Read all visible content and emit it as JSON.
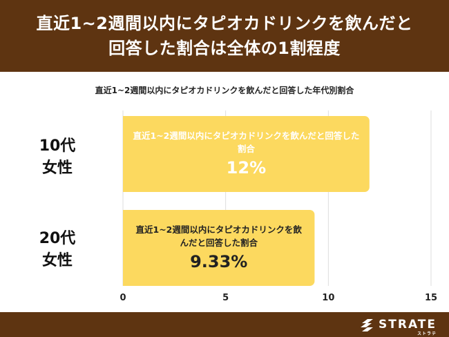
{
  "header": {
    "title_line1": "直近1~2週間以内にタピオカドリンクを飲んだと",
    "title_line2": "回答した割合は全体の1割程度"
  },
  "chart_data": {
    "type": "bar",
    "orientation": "horizontal",
    "title": "直近1~2週間以内にタピオカドリンクを飲んだと回答した年代別割合",
    "categories": [
      "10代 女性",
      "20代 女性"
    ],
    "category_lines": [
      [
        "10代",
        "女性"
      ],
      [
        "20代",
        "女性"
      ]
    ],
    "values": [
      12,
      9.33
    ],
    "data_labels": [
      {
        "desc": "直近1~2週間以内にタピオカドリンクを飲んだと回答した割合",
        "value_text": "12%"
      },
      {
        "desc": "直近1~2週間以内にタピオカドリンクを飲んだと回答した割合",
        "value_text": "9.33%"
      }
    ],
    "xlim": [
      0,
      15
    ],
    "xticks": [
      "0",
      "5",
      "10",
      "15"
    ],
    "grid": true,
    "bar_color": "#fcd95f",
    "label_colors": [
      "#ffffff",
      "#222222"
    ]
  },
  "footer": {
    "brand": "STRATE",
    "brand_sub": "ストラテ"
  },
  "colors": {
    "header_bg": "#5e3411",
    "bar": "#fcd95f",
    "grid": "#dddddd"
  }
}
